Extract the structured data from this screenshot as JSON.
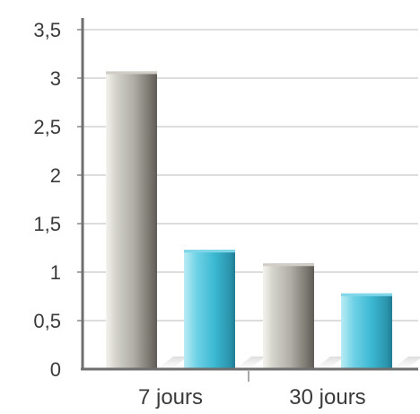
{
  "chart_data": {
    "type": "bar",
    "categories": [
      "7 jours",
      "30 jours"
    ],
    "series": [
      {
        "values": [
          3.07,
          1.09
        ],
        "color": "#9a9890"
      },
      {
        "values": [
          1.23,
          0.78
        ],
        "color": "#3bb8d2"
      }
    ],
    "ylim": [
      0,
      3.5
    ],
    "yticks": [
      0,
      0.5,
      1,
      1.5,
      2,
      2.5,
      3,
      3.5
    ],
    "ytick_labels": [
      "0",
      "0,5",
      "1",
      "1,5",
      "2",
      "2,5",
      "3",
      "3,5"
    ],
    "grid": true,
    "legend": "none",
    "title": "",
    "xlabel": "",
    "ylabel": ""
  }
}
